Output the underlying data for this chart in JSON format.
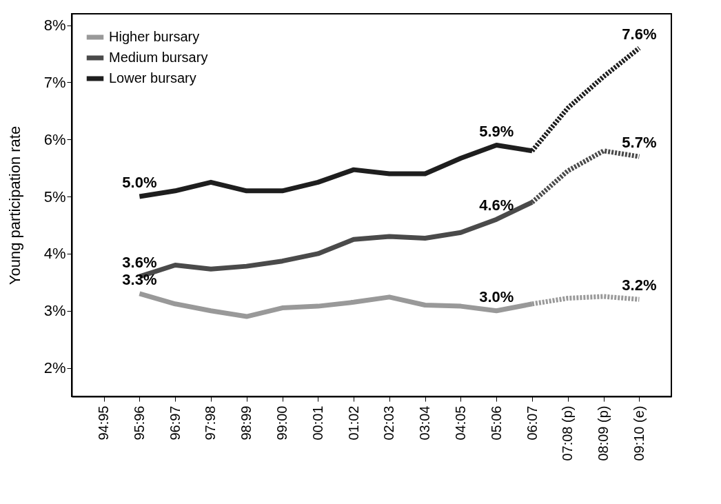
{
  "chart_data": {
    "type": "line",
    "ylabel": "Young participation rate",
    "categories": [
      "94:95",
      "95:96",
      "96:97",
      "97:98",
      "98:99",
      "99:00",
      "00:01",
      "01:02",
      "02:03",
      "03:04",
      "04:05",
      "05:06",
      "06:07",
      "07:08 (p)",
      "08:09 (p)",
      "09:10 (e)"
    ],
    "series": [
      {
        "name": "Higher bursary",
        "color": "#999999",
        "line_style": "solid",
        "values": [
          null,
          3.3,
          3.12,
          3.0,
          2.9,
          3.05,
          3.08,
          3.15,
          3.24,
          3.1,
          3.08,
          3.0,
          3.12,
          null,
          null,
          null
        ]
      },
      {
        "name": "Medium bursary",
        "color": "#4a4a4a",
        "line_style": "solid",
        "values": [
          null,
          3.6,
          3.8,
          3.73,
          3.78,
          3.87,
          4.0,
          4.25,
          4.3,
          4.27,
          4.37,
          4.6,
          4.9,
          null,
          null,
          null
        ]
      },
      {
        "name": "Lower bursary",
        "color": "#1e1e1e",
        "line_style": "solid",
        "values": [
          null,
          5.0,
          5.1,
          5.25,
          5.1,
          5.1,
          5.25,
          5.47,
          5.4,
          5.4,
          5.67,
          5.9,
          5.8,
          null,
          null,
          null
        ]
      },
      {
        "color": "#999999",
        "line_style": "dashed",
        "values": [
          null,
          null,
          null,
          null,
          null,
          null,
          null,
          null,
          null,
          null,
          null,
          null,
          3.12,
          3.22,
          3.25,
          3.2
        ]
      },
      {
        "color": "#4a4a4a",
        "line_style": "dashed",
        "values": [
          null,
          null,
          null,
          null,
          null,
          null,
          null,
          null,
          null,
          null,
          null,
          null,
          4.9,
          5.45,
          5.8,
          5.7
        ]
      },
      {
        "color": "#1e1e1e",
        "line_style": "dashed",
        "values": [
          null,
          null,
          null,
          null,
          null,
          null,
          null,
          null,
          null,
          null,
          null,
          null,
          5.8,
          6.55,
          7.1,
          7.6
        ]
      }
    ],
    "ylim": [
      1.5,
      8.2
    ],
    "yticks": [
      {
        "value": 2,
        "label": "2%"
      },
      {
        "value": 3,
        "label": "3%"
      },
      {
        "value": 4,
        "label": "4%"
      },
      {
        "value": 5,
        "label": "5%"
      },
      {
        "value": 6,
        "label": "6%"
      },
      {
        "value": 7,
        "label": "7%"
      },
      {
        "value": 8,
        "label": "8%"
      }
    ],
    "annotations": [
      {
        "text": "5.0%",
        "x": "95:96",
        "y": 5.0
      },
      {
        "text": "3.6%",
        "x": "95:96",
        "y": 3.6
      },
      {
        "text": "3.3%",
        "x": "95:96",
        "y": 3.3
      },
      {
        "text": "5.9%",
        "x": "05:06",
        "y": 5.9
      },
      {
        "text": "4.6%",
        "x": "05:06",
        "y": 4.6
      },
      {
        "text": "3.0%",
        "x": "05:06",
        "y": 3.0
      },
      {
        "text": "7.6%",
        "x": "09:10 (e)",
        "y": 7.6
      },
      {
        "text": "5.7%",
        "x": "09:10 (e)",
        "y": 5.7
      },
      {
        "text": "3.2%",
        "x": "09:10 (e)",
        "y": 3.2
      }
    ],
    "grid": false,
    "legend": "top left"
  }
}
